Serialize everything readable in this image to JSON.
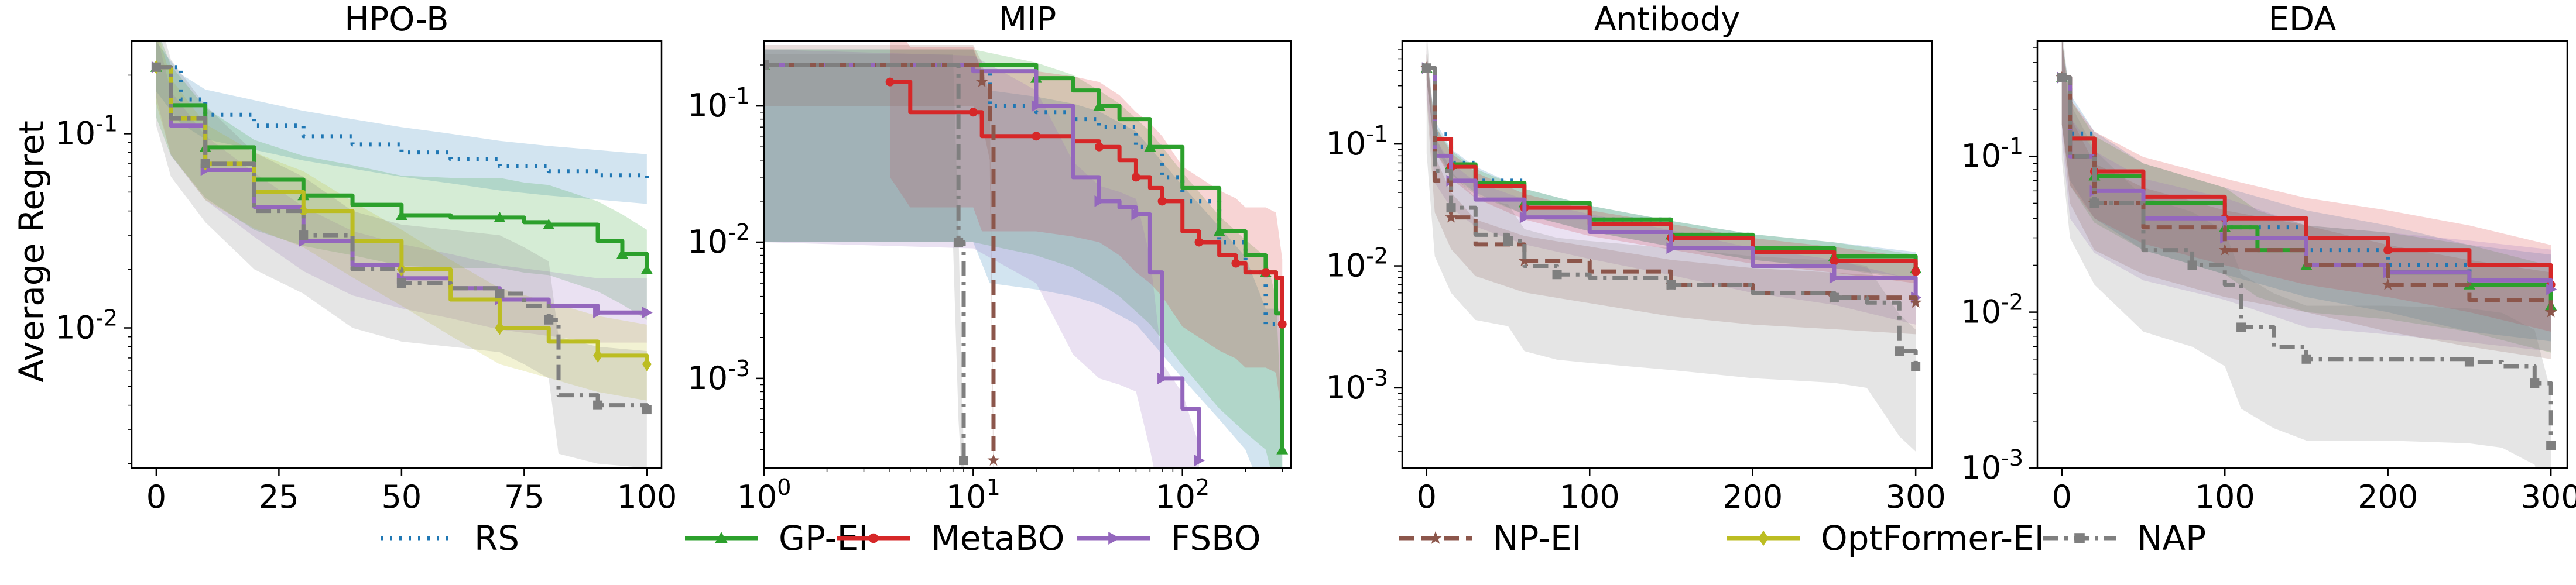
{
  "chart_data": [
    {
      "type": "line",
      "title": "HPO-B",
      "xscale": "linear",
      "yscale": "log",
      "xlim": [
        -5,
        103
      ],
      "ylim": [
        0.0019,
        0.3
      ],
      "xticks": [
        0,
        25,
        50,
        75,
        100
      ],
      "xtick_labels": [
        "0",
        "25",
        "50",
        "75",
        "100"
      ],
      "yticks": [
        0.1,
        0.01
      ],
      "ytick_labels": [
        "10^-1",
        "10^-2"
      ],
      "ylabel": "Average Regret",
      "series": [
        {
          "name": "RS",
          "x": [
            0,
            5,
            10,
            20,
            30,
            40,
            50,
            60,
            70,
            80,
            90,
            100
          ],
          "y": [
            0.22,
            0.15,
            0.125,
            0.11,
            0.097,
            0.088,
            0.08,
            0.074,
            0.068,
            0.064,
            0.061,
            0.058
          ],
          "band": [
            0.75,
            1.35
          ]
        },
        {
          "name": "GP-EI",
          "x": [
            0,
            3,
            10,
            20,
            30,
            40,
            50,
            60,
            70,
            75,
            80,
            90,
            95,
            100
          ],
          "y": [
            0.22,
            0.14,
            0.085,
            0.058,
            0.048,
            0.043,
            0.038,
            0.037,
            0.037,
            0.035,
            0.034,
            0.028,
            0.024,
            0.02
          ],
          "band": [
            0.55,
            1.6
          ]
        },
        {
          "name": "FSBO",
          "x": [
            0,
            3,
            10,
            20,
            30,
            40,
            50,
            60,
            70,
            80,
            90,
            100
          ],
          "y": [
            0.22,
            0.11,
            0.065,
            0.042,
            0.028,
            0.021,
            0.018,
            0.016,
            0.014,
            0.013,
            0.012,
            0.012
          ],
          "band": [
            0.7,
            1.5
          ]
        },
        {
          "name": "OptFormer-EI",
          "x": [
            0,
            3,
            10,
            20,
            30,
            40,
            50,
            60,
            70,
            80,
            90,
            100
          ],
          "y": [
            0.22,
            0.12,
            0.07,
            0.05,
            0.04,
            0.028,
            0.02,
            0.014,
            0.01,
            0.0085,
            0.0072,
            0.0065
          ],
          "band": [
            0.65,
            1.6
          ]
        },
        {
          "name": "NAP",
          "x": [
            0,
            3,
            10,
            20,
            30,
            40,
            50,
            60,
            70,
            75,
            80,
            82,
            90,
            100
          ],
          "y": [
            0.22,
            0.12,
            0.07,
            0.04,
            0.03,
            0.02,
            0.017,
            0.016,
            0.015,
            0.013,
            0.011,
            0.0045,
            0.004,
            0.0038
          ],
          "band": [
            0.5,
            2.0
          ]
        }
      ]
    },
    {
      "type": "line",
      "title": "MIP",
      "xscale": "log",
      "yscale": "log",
      "xlim": [
        1,
        330
      ],
      "ylim": [
        0.00022,
        0.3
      ],
      "xticks": [
        1,
        10,
        100
      ],
      "xtick_labels": [
        "10^0",
        "10^1",
        "10^2"
      ],
      "yticks": [
        0.1,
        0.01,
        0.001
      ],
      "ytick_labels": [
        "10^-1",
        "10^-2",
        "10^-3"
      ],
      "ylabel": "",
      "series": [
        {
          "name": "RS",
          "x": [
            1,
            10,
            12,
            20,
            30,
            40,
            60,
            80,
            100,
            150,
            200,
            250,
            290,
            300
          ],
          "y": [
            0.2,
            0.2,
            0.1,
            0.09,
            0.08,
            0.07,
            0.05,
            0.03,
            0.02,
            0.01,
            0.006,
            0.0025,
            0.0025,
            0.0003
          ],
          "band": [
            0.05,
            1.3
          ]
        },
        {
          "name": "GP-EI",
          "x": [
            1,
            10,
            20,
            30,
            40,
            50,
            70,
            100,
            150,
            200,
            250,
            280,
            300
          ],
          "y": [
            0.2,
            0.2,
            0.16,
            0.13,
            0.1,
            0.08,
            0.05,
            0.025,
            0.012,
            0.008,
            0.006,
            0.003,
            0.0003
          ],
          "band": [
            0.05,
            1.3
          ]
        },
        {
          "name": "MetaBO",
          "x": [
            4,
            5,
            10,
            11,
            20,
            30,
            40,
            50,
            60,
            70,
            80,
            100,
            120,
            150,
            180,
            200,
            250,
            280,
            300
          ],
          "y": [
            0.15,
            0.09,
            0.09,
            0.06,
            0.06,
            0.055,
            0.05,
            0.04,
            0.03,
            0.025,
            0.02,
            0.012,
            0.01,
            0.008,
            0.007,
            0.006,
            0.006,
            0.0055,
            0.0025
          ],
          "band": [
            0.2,
            3.0
          ]
        },
        {
          "name": "FSBO",
          "x": [
            1,
            10,
            20,
            30,
            40,
            50,
            60,
            70,
            80,
            100,
            120
          ],
          "y": [
            0.2,
            0.18,
            0.1,
            0.03,
            0.02,
            0.018,
            0.016,
            0.006,
            0.001,
            0.0006,
            0.00025
          ],
          "band": [
            0.05,
            1.3
          ]
        },
        {
          "name": "NP-EI",
          "x": [
            1,
            10,
            11,
            12,
            12.5
          ],
          "y": [
            0.2,
            0.2,
            0.15,
            0.08,
            0.00025
          ],
          "band": [
            0.5,
            1.4
          ]
        },
        {
          "name": "NAP",
          "x": [
            1,
            8,
            8.5,
            9
          ],
          "y": [
            0.2,
            0.2,
            0.01,
            0.00025
          ],
          "band": [
            0.05,
            1.2
          ]
        }
      ]
    },
    {
      "type": "line",
      "title": "Antibody",
      "xscale": "linear",
      "yscale": "log",
      "xlim": [
        -15,
        310
      ],
      "ylim": [
        0.00022,
        0.7
      ],
      "xticks": [
        0,
        100,
        200,
        300
      ],
      "xtick_labels": [
        "0",
        "100",
        "200",
        "300"
      ],
      "yticks": [
        0.1,
        0.01,
        0.001
      ],
      "ytick_labels": [
        "10^-1",
        "10^-2",
        "10^-3"
      ],
      "ylabel": "",
      "series": [
        {
          "name": "RS",
          "x": [
            0,
            5,
            15,
            30,
            60,
            100,
            150,
            200,
            250,
            300
          ],
          "y": [
            0.42,
            0.12,
            0.07,
            0.05,
            0.033,
            0.024,
            0.018,
            0.014,
            0.012,
            0.01
          ],
          "band": [
            0.8,
            1.3
          ]
        },
        {
          "name": "GP-EI",
          "x": [
            0,
            5,
            15,
            30,
            60,
            100,
            150,
            200,
            250,
            300
          ],
          "y": [
            0.42,
            0.11,
            0.068,
            0.048,
            0.033,
            0.024,
            0.018,
            0.014,
            0.012,
            0.0095
          ],
          "band": [
            0.8,
            1.3
          ]
        },
        {
          "name": "MetaBO",
          "x": [
            0,
            5,
            15,
            30,
            60,
            100,
            150,
            200,
            250,
            300
          ],
          "y": [
            0.42,
            0.11,
            0.065,
            0.045,
            0.03,
            0.022,
            0.017,
            0.013,
            0.011,
            0.009
          ],
          "band": [
            0.8,
            1.3
          ]
        },
        {
          "name": "FSBO",
          "x": [
            0,
            5,
            15,
            30,
            60,
            100,
            150,
            200,
            250,
            300
          ],
          "y": [
            0.42,
            0.08,
            0.05,
            0.035,
            0.025,
            0.019,
            0.014,
            0.01,
            0.008,
            0.0055
          ],
          "band": [
            0.6,
            1.4
          ]
        },
        {
          "name": "NP-EI",
          "x": [
            0,
            5,
            15,
            30,
            60,
            100,
            150,
            200,
            250,
            300
          ],
          "y": [
            0.42,
            0.05,
            0.025,
            0.015,
            0.011,
            0.009,
            0.007,
            0.006,
            0.0055,
            0.005
          ],
          "band": [
            0.55,
            1.6
          ]
        },
        {
          "name": "NAP",
          "x": [
            0,
            5,
            15,
            30,
            50,
            60,
            80,
            100,
            150,
            200,
            250,
            270,
            290,
            300
          ],
          "y": [
            0.42,
            0.06,
            0.03,
            0.018,
            0.016,
            0.01,
            0.0085,
            0.008,
            0.007,
            0.006,
            0.0055,
            0.005,
            0.002,
            0.0015
          ],
          "band": [
            0.2,
            2.0
          ]
        }
      ]
    },
    {
      "type": "line",
      "title": "EDA",
      "xscale": "linear",
      "yscale": "log",
      "xlim": [
        -15,
        310
      ],
      "ylim": [
        0.001,
        0.55
      ],
      "xticks": [
        0,
        100,
        200,
        300
      ],
      "xtick_labels": [
        "0",
        "100",
        "200",
        "300"
      ],
      "yticks": [
        0.1,
        0.01,
        0.001
      ],
      "ytick_labels": [
        "10^-1",
        "10^-2",
        "10^-3"
      ],
      "ylabel": "",
      "series": [
        {
          "name": "RS",
          "x": [
            0,
            5,
            20,
            50,
            100,
            150,
            200,
            250,
            300
          ],
          "y": [
            0.32,
            0.14,
            0.08,
            0.05,
            0.035,
            0.025,
            0.02,
            0.015,
            0.013
          ],
          "band": [
            0.5,
            1.8
          ]
        },
        {
          "name": "GP-EI",
          "x": [
            0,
            5,
            20,
            50,
            100,
            120,
            150,
            200,
            250,
            300
          ],
          "y": [
            0.32,
            0.13,
            0.075,
            0.05,
            0.035,
            0.025,
            0.02,
            0.018,
            0.015,
            0.011
          ],
          "band": [
            0.5,
            1.8
          ]
        },
        {
          "name": "MetaBO",
          "x": [
            0,
            5,
            20,
            50,
            100,
            150,
            200,
            250,
            300
          ],
          "y": [
            0.32,
            0.13,
            0.08,
            0.055,
            0.04,
            0.03,
            0.025,
            0.02,
            0.015
          ],
          "band": [
            0.5,
            1.8
          ]
        },
        {
          "name": "FSBO",
          "x": [
            0,
            5,
            20,
            50,
            100,
            150,
            200,
            250,
            300
          ],
          "y": [
            0.32,
            0.1,
            0.06,
            0.04,
            0.03,
            0.02,
            0.018,
            0.016,
            0.014
          ],
          "band": [
            0.4,
            1.8
          ]
        },
        {
          "name": "NP-EI",
          "x": [
            0,
            5,
            20,
            50,
            100,
            150,
            200,
            250,
            300
          ],
          "y": [
            0.32,
            0.1,
            0.05,
            0.035,
            0.025,
            0.02,
            0.015,
            0.012,
            0.01
          ],
          "band": [
            0.5,
            1.8
          ]
        },
        {
          "name": "NAP",
          "x": [
            0,
            5,
            20,
            50,
            80,
            100,
            110,
            130,
            150,
            200,
            250,
            270,
            290,
            300
          ],
          "y": [
            0.32,
            0.1,
            0.05,
            0.025,
            0.02,
            0.015,
            0.008,
            0.006,
            0.005,
            0.005,
            0.0048,
            0.0045,
            0.0035,
            0.0014
          ],
          "band": [
            0.3,
            2.2
          ]
        }
      ]
    }
  ],
  "legend": [
    {
      "name": "RS",
      "color": "#1f77b4",
      "dash": "dotted",
      "marker": "none"
    },
    {
      "name": "GP-EI",
      "color": "#2ca02c",
      "dash": "solid",
      "marker": "triangle"
    },
    {
      "name": "MetaBO",
      "color": "#d62728",
      "dash": "solid",
      "marker": "circle"
    },
    {
      "name": "FSBO",
      "color": "#9467bd",
      "dash": "solid",
      "marker": "triangle-right"
    },
    {
      "name": "NP-EI",
      "color": "#8c564b",
      "dash": "dashed",
      "marker": "star"
    },
    {
      "name": "OptFormer-EI",
      "color": "#bcbd22",
      "dash": "solid",
      "marker": "diamond"
    },
    {
      "name": "NAP",
      "color": "#7f7f7f",
      "dash": "dashdot",
      "marker": "square"
    }
  ]
}
